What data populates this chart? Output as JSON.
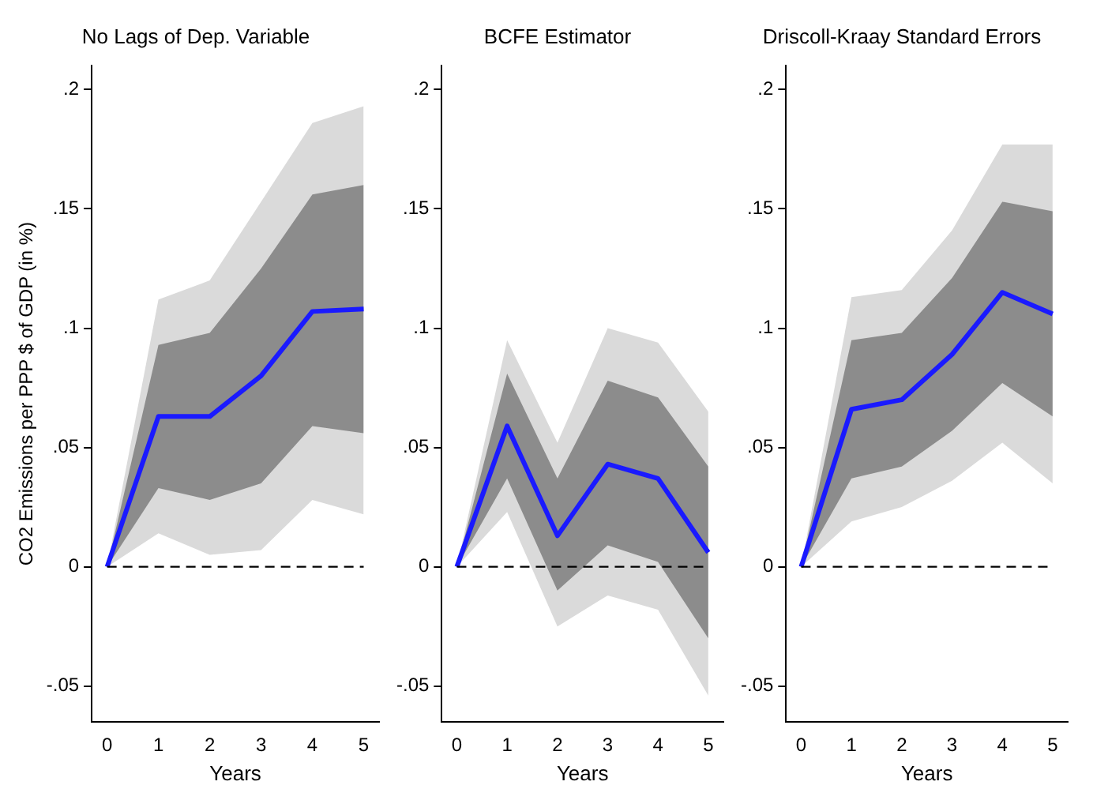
{
  "chart_data": [
    {
      "type": "line",
      "title": "No Lags of Dep. Variable",
      "xlabel": "Years",
      "ylabel": "CO2 Emissions per PPP $ of GDP (in %)",
      "x": [
        0,
        1,
        2,
        3,
        4,
        5
      ],
      "xlim": [
        -0.3,
        5.3
      ],
      "xticks": [
        0,
        1,
        2,
        3,
        4,
        5
      ],
      "ylim": [
        -0.065,
        0.21
      ],
      "yticks": [
        {
          "value": -0.05,
          "label": "-.05"
        },
        {
          "value": 0,
          "label": "0"
        },
        {
          "value": 0.05,
          "label": ".05"
        },
        {
          "value": 0.1,
          "label": ".1"
        },
        {
          "value": 0.15,
          "label": ".15"
        },
        {
          "value": 0.2,
          "label": ".2"
        }
      ],
      "grid": false,
      "marker": "none",
      "series": [
        {
          "color": "#dadada",
          "values": [
            null,
            null,
            null,
            null,
            null,
            null
          ],
          "lower": [
            0,
            0.014,
            0.005,
            0.007,
            0.028,
            0.022
          ],
          "upper": [
            0,
            0.112,
            0.12,
            0.153,
            0.186,
            0.193
          ]
        },
        {
          "color": "#8c8c8c",
          "values": [
            null,
            null,
            null,
            null,
            null,
            null
          ],
          "lower": [
            0,
            0.033,
            0.028,
            0.035,
            0.059,
            0.056
          ],
          "upper": [
            0,
            0.093,
            0.098,
            0.125,
            0.156,
            0.16
          ]
        },
        {
          "color": "#1a1aff",
          "values": [
            0,
            0.063,
            0.063,
            0.08,
            0.107,
            0.108
          ]
        }
      ],
      "ref_lines": [
        {
          "axis": "y",
          "value": 0,
          "color": "#000000",
          "line_style": "dashed"
        }
      ]
    },
    {
      "type": "line",
      "title": "BCFE Estimator",
      "xlabel": "Years",
      "x": [
        0,
        1,
        2,
        3,
        4,
        5
      ],
      "xlim": [
        -0.3,
        5.3
      ],
      "xticks": [
        0,
        1,
        2,
        3,
        4,
        5
      ],
      "ylim": [
        -0.065,
        0.21
      ],
      "yticks": [
        {
          "value": -0.05,
          "label": "-.05"
        },
        {
          "value": 0,
          "label": "0"
        },
        {
          "value": 0.05,
          "label": ".05"
        },
        {
          "value": 0.1,
          "label": ".1"
        },
        {
          "value": 0.15,
          "label": ".15"
        },
        {
          "value": 0.2,
          "label": ".2"
        }
      ],
      "grid": false,
      "marker": "none",
      "series": [
        {
          "color": "#dadada",
          "values": [
            null,
            null,
            null,
            null,
            null,
            null
          ],
          "lower": [
            0,
            0.023,
            -0.025,
            -0.012,
            -0.018,
            -0.054
          ],
          "upper": [
            0,
            0.095,
            0.052,
            0.1,
            0.094,
            0.065
          ]
        },
        {
          "color": "#8c8c8c",
          "values": [
            null,
            null,
            null,
            null,
            null,
            null
          ],
          "lower": [
            0,
            0.037,
            -0.01,
            0.009,
            0.002,
            -0.03
          ],
          "upper": [
            0,
            0.081,
            0.037,
            0.078,
            0.071,
            0.042
          ]
        },
        {
          "color": "#1a1aff",
          "values": [
            0,
            0.059,
            0.013,
            0.043,
            0.037,
            0.006
          ]
        }
      ],
      "ref_lines": [
        {
          "axis": "y",
          "value": 0,
          "color": "#000000",
          "line_style": "dashed"
        }
      ]
    },
    {
      "type": "line",
      "title": "Driscoll-Kraay Standard Errors",
      "xlabel": "Years",
      "x": [
        0,
        1,
        2,
        3,
        4,
        5
      ],
      "xlim": [
        -0.3,
        5.3
      ],
      "xticks": [
        0,
        1,
        2,
        3,
        4,
        5
      ],
      "ylim": [
        -0.065,
        0.21
      ],
      "yticks": [
        {
          "value": -0.05,
          "label": "-.05"
        },
        {
          "value": 0,
          "label": "0"
        },
        {
          "value": 0.05,
          "label": ".05"
        },
        {
          "value": 0.1,
          "label": ".1"
        },
        {
          "value": 0.15,
          "label": ".15"
        },
        {
          "value": 0.2,
          "label": ".2"
        }
      ],
      "grid": false,
      "marker": "none",
      "series": [
        {
          "color": "#dadada",
          "values": [
            null,
            null,
            null,
            null,
            null,
            null
          ],
          "lower": [
            0,
            0.019,
            0.025,
            0.036,
            0.052,
            0.035
          ],
          "upper": [
            0,
            0.113,
            0.116,
            0.141,
            0.177,
            0.177
          ]
        },
        {
          "color": "#8c8c8c",
          "values": [
            null,
            null,
            null,
            null,
            null,
            null
          ],
          "lower": [
            0,
            0.037,
            0.042,
            0.057,
            0.077,
            0.063
          ],
          "upper": [
            0,
            0.095,
            0.098,
            0.121,
            0.153,
            0.149
          ]
        },
        {
          "color": "#1a1aff",
          "values": [
            0,
            0.066,
            0.07,
            0.089,
            0.115,
            0.106
          ]
        }
      ],
      "ref_lines": [
        {
          "axis": "y",
          "value": 0,
          "color": "#000000",
          "line_style": "dashed"
        }
      ]
    }
  ]
}
